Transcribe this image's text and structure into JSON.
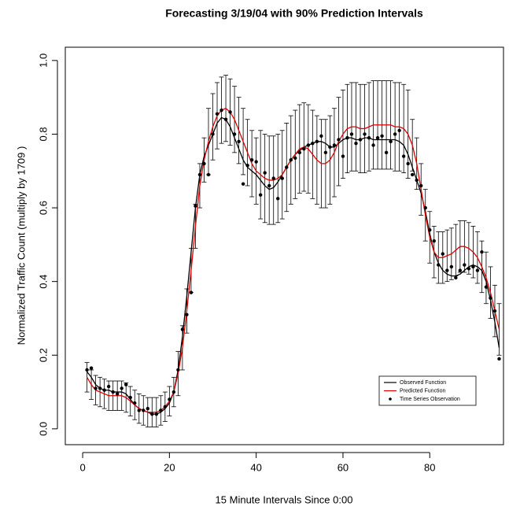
{
  "chart_data": {
    "type": "line",
    "title": "Forecasting 3/19/04 with 90% Prediction Intervals",
    "x_label": "15 Minute Intervals Since 0:00",
    "y_label": "Normalized Traffic Count (multiply by  1709 )",
    "x": [
      1,
      2,
      3,
      4,
      5,
      6,
      7,
      8,
      9,
      10,
      11,
      12,
      13,
      14,
      15,
      16,
      17,
      18,
      19,
      20,
      21,
      22,
      23,
      24,
      25,
      26,
      27,
      28,
      29,
      30,
      31,
      32,
      33,
      34,
      35,
      36,
      37,
      38,
      39,
      40,
      41,
      42,
      43,
      44,
      45,
      46,
      47,
      48,
      49,
      50,
      51,
      52,
      53,
      54,
      55,
      56,
      57,
      58,
      59,
      60,
      61,
      62,
      63,
      64,
      65,
      66,
      67,
      68,
      69,
      70,
      71,
      72,
      73,
      74,
      75,
      76,
      77,
      78,
      79,
      80,
      81,
      82,
      83,
      84,
      85,
      86,
      87,
      88,
      89,
      90,
      91,
      92,
      93,
      94,
      95,
      96
    ],
    "xlim": [
      -4,
      97
    ],
    "xticks": [
      0,
      20,
      40,
      60,
      80
    ],
    "ylim": [
      -0.043,
      1.036
    ],
    "yticks": [
      {
        "value": 0,
        "label": "0.0"
      },
      0.2,
      0.4,
      0.6,
      0.8,
      {
        "value": 1,
        "label": "1.0"
      }
    ],
    "legend": "bottom-right",
    "series": [
      {
        "name": "Observed Function",
        "color": "#000000",
        "style": "line",
        "values": [
          0.155,
          0.14,
          0.12,
          0.11,
          0.105,
          0.105,
          0.1,
          0.1,
          0.1,
          0.095,
          0.08,
          0.065,
          0.055,
          0.05,
          0.045,
          0.04,
          0.04,
          0.045,
          0.055,
          0.07,
          0.1,
          0.16,
          0.25,
          0.36,
          0.48,
          0.6,
          0.69,
          0.74,
          0.77,
          0.8,
          0.83,
          0.845,
          0.84,
          0.82,
          0.79,
          0.76,
          0.73,
          0.71,
          0.7,
          0.69,
          0.675,
          0.66,
          0.65,
          0.655,
          0.67,
          0.69,
          0.71,
          0.73,
          0.745,
          0.755,
          0.765,
          0.77,
          0.775,
          0.78,
          0.78,
          0.775,
          0.765,
          0.765,
          0.775,
          0.785,
          0.79,
          0.79,
          0.785,
          0.785,
          0.79,
          0.79,
          0.785,
          0.785,
          0.785,
          0.785,
          0.785,
          0.785,
          0.78,
          0.77,
          0.745,
          0.71,
          0.675,
          0.64,
          0.59,
          0.53,
          0.48,
          0.45,
          0.43,
          0.42,
          0.415,
          0.415,
          0.42,
          0.43,
          0.44,
          0.445,
          0.44,
          0.43,
          0.4,
          0.35,
          0.29,
          0.22
        ]
      },
      {
        "name": "Predicted Function",
        "color": "#e00000",
        "style": "line",
        "values": [
          0.14,
          0.12,
          0.105,
          0.1,
          0.095,
          0.09,
          0.09,
          0.09,
          0.09,
          0.085,
          0.075,
          0.065,
          0.055,
          0.05,
          0.045,
          0.045,
          0.045,
          0.05,
          0.06,
          0.075,
          0.1,
          0.15,
          0.22,
          0.32,
          0.43,
          0.55,
          0.66,
          0.73,
          0.78,
          0.82,
          0.85,
          0.865,
          0.87,
          0.86,
          0.84,
          0.81,
          0.78,
          0.75,
          0.72,
          0.7,
          0.69,
          0.68,
          0.675,
          0.675,
          0.68,
          0.69,
          0.71,
          0.73,
          0.745,
          0.76,
          0.765,
          0.76,
          0.745,
          0.73,
          0.72,
          0.72,
          0.73,
          0.75,
          0.78,
          0.8,
          0.815,
          0.82,
          0.82,
          0.815,
          0.815,
          0.82,
          0.825,
          0.825,
          0.825,
          0.825,
          0.825,
          0.82,
          0.82,
          0.815,
          0.8,
          0.77,
          0.72,
          0.65,
          0.58,
          0.52,
          0.48,
          0.465,
          0.465,
          0.47,
          0.475,
          0.485,
          0.495,
          0.495,
          0.49,
          0.48,
          0.465,
          0.44,
          0.41,
          0.37,
          0.32,
          0.27
        ],
        "errors": [
          0.04,
          0.04,
          0.04,
          0.04,
          0.04,
          0.04,
          0.04,
          0.04,
          0.04,
          0.04,
          0.04,
          0.04,
          0.04,
          0.04,
          0.04,
          0.04,
          0.04,
          0.04,
          0.04,
          0.04,
          0.04,
          0.06,
          0.06,
          0.06,
          0.06,
          0.06,
          0.06,
          0.06,
          0.09,
          0.09,
          0.09,
          0.09,
          0.09,
          0.09,
          0.09,
          0.09,
          0.09,
          0.09,
          0.09,
          0.09,
          0.12,
          0.12,
          0.12,
          0.12,
          0.12,
          0.12,
          0.12,
          0.12,
          0.12,
          0.12,
          0.12,
          0.12,
          0.12,
          0.12,
          0.12,
          0.12,
          0.12,
          0.12,
          0.12,
          0.12,
          0.12,
          0.12,
          0.12,
          0.12,
          0.12,
          0.12,
          0.12,
          0.12,
          0.12,
          0.12,
          0.12,
          0.12,
          0.12,
          0.12,
          0.12,
          0.07,
          0.07,
          0.07,
          0.07,
          0.07,
          0.07,
          0.07,
          0.07,
          0.07,
          0.07,
          0.07,
          0.07,
          0.07,
          0.07,
          0.07,
          0.07,
          0.07,
          0.07,
          0.07,
          0.07,
          0.07
        ]
      },
      {
        "name": "Time Series Observation",
        "color": "#000000",
        "style": "points",
        "values": [
          0.16,
          0.165,
          0.11,
          0.11,
          0.105,
          0.115,
          0.1,
          0.095,
          0.11,
          0.12,
          0.085,
          0.07,
          0.05,
          0.05,
          0.055,
          0.04,
          0.04,
          0.05,
          0.06,
          0.08,
          0.1,
          0.16,
          0.27,
          0.31,
          0.37,
          0.605,
          0.69,
          0.72,
          0.69,
          0.8,
          0.855,
          0.865,
          0.84,
          0.86,
          0.8,
          0.78,
          0.665,
          0.715,
          0.73,
          0.725,
          0.635,
          0.695,
          0.66,
          0.68,
          0.625,
          0.68,
          0.71,
          0.73,
          0.735,
          0.75,
          0.76,
          0.77,
          0.775,
          0.78,
          0.795,
          0.75,
          0.765,
          0.77,
          0.785,
          0.74,
          0.79,
          0.8,
          0.775,
          0.785,
          0.8,
          0.79,
          0.77,
          0.79,
          0.795,
          0.75,
          0.78,
          0.8,
          0.81,
          0.74,
          0.72,
          0.69,
          0.675,
          0.66,
          0.6,
          0.54,
          0.51,
          0.445,
          0.475,
          0.43,
          0.44,
          0.41,
          0.43,
          0.445,
          0.435,
          0.44,
          0.43,
          0.48,
          0.385,
          0.355,
          0.32,
          0.19
        ]
      }
    ]
  }
}
